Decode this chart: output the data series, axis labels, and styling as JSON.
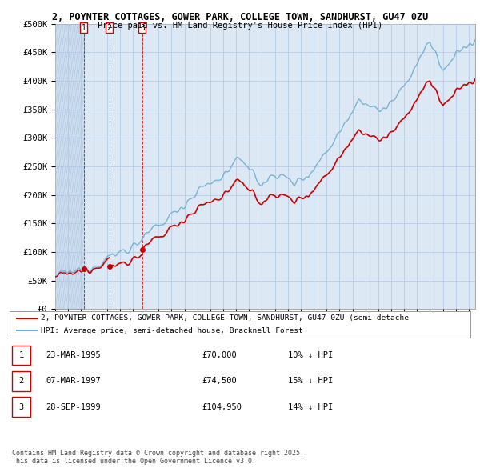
{
  "title_line1": "2, POYNTER COTTAGES, GOWER PARK, COLLEGE TOWN, SANDHURST, GU47 0ZU",
  "title_line2": "Price paid vs. HM Land Registry's House Price Index (HPI)",
  "bg_color": "#ffffff",
  "plot_bg_color": "#dde8f5",
  "grid_color": "#aec6e8",
  "hatch_color": "#c5d8ee",
  "hpi_color": "#6baed6",
  "price_color": "#cc0000",
  "vline_colors": [
    "#cc0000",
    "#888888",
    "#cc0000"
  ],
  "yticks": [
    0,
    50000,
    100000,
    150000,
    200000,
    250000,
    300000,
    350000,
    400000,
    450000,
    500000
  ],
  "ytick_labels": [
    "£0",
    "£50K",
    "£100K",
    "£150K",
    "£200K",
    "£250K",
    "£300K",
    "£350K",
    "£400K",
    "£450K",
    "£500K"
  ],
  "ylim": [
    0,
    500000
  ],
  "xlim_start": 1993.0,
  "xlim_end": 2025.5,
  "transactions": [
    {
      "num": 1,
      "date": "23-MAR-1995",
      "price": 70000,
      "year": 1995.22,
      "hpi_pct": "10%"
    },
    {
      "num": 2,
      "date": "07-MAR-1997",
      "price": 74500,
      "year": 1997.18,
      "hpi_pct": "15%"
    },
    {
      "num": 3,
      "date": "28-SEP-1999",
      "price": 104950,
      "year": 1999.74,
      "hpi_pct": "14%"
    }
  ],
  "legend_label1": "2, POYNTER COTTAGES, GOWER PARK, COLLEGE TOWN, SANDHURST, GU47 0ZU (semi-detache",
  "legend_label2": "HPI: Average price, semi-detached house, Bracknell Forest",
  "footnote": "Contains HM Land Registry data © Crown copyright and database right 2025.\nThis data is licensed under the Open Government Licence v3.0.",
  "table_rows": [
    [
      "1",
      "23-MAR-1995",
      "£70,000",
      "10% ↓ HPI"
    ],
    [
      "2",
      "07-MAR-1997",
      "£74,500",
      "15% ↓ HPI"
    ],
    [
      "3",
      "28-SEP-1999",
      "£104,950",
      "14% ↓ HPI"
    ]
  ]
}
